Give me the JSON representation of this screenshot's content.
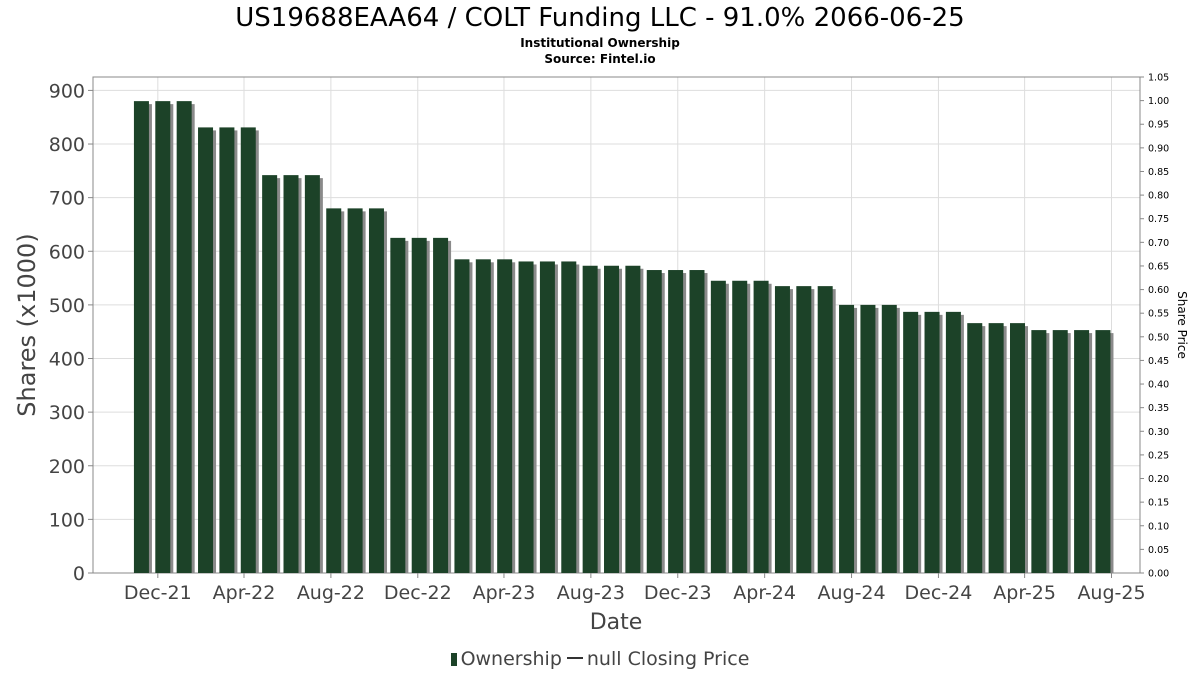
{
  "title": "US19688EAA64 / COLT Funding LLC - 91.0% 2066-06-25",
  "subtitle": "Institutional Ownership",
  "source": "Source: Fintel.io",
  "legend": {
    "ownership": "Ownership",
    "price": "null Closing Price"
  },
  "colors": {
    "bar": "#1c4228",
    "bar_shadow": "#8a8a8a",
    "grid": "#dddddd",
    "axis": "#888888"
  },
  "chart_data": {
    "type": "bar",
    "xlabel": "Date",
    "ylabel": "Shares (x1000)",
    "y2label": "Share Price",
    "ylim": [
      0,
      925
    ],
    "y2lim": [
      0,
      1.05
    ],
    "xlim": [
      "2021-09-01",
      "2025-09-10"
    ],
    "grid": true,
    "legend_position": "bottom",
    "yticks": [
      0,
      100,
      200,
      300,
      400,
      500,
      600,
      700,
      800,
      900
    ],
    "y2ticks": [
      "0.00",
      "0.05",
      "0.10",
      "0.15",
      "0.20",
      "0.25",
      "0.30",
      "0.35",
      "0.40",
      "0.45",
      "0.50",
      "0.55",
      "0.60",
      "0.65",
      "0.70",
      "0.75",
      "0.80",
      "0.85",
      "0.90",
      "0.95",
      "1.00",
      "1.05"
    ],
    "xticks": [
      {
        "label": "Dec-21",
        "date": "2021-12-01"
      },
      {
        "label": "Apr-22",
        "date": "2022-04-01"
      },
      {
        "label": "Aug-22",
        "date": "2022-08-01"
      },
      {
        "label": "Dec-22",
        "date": "2022-12-01"
      },
      {
        "label": "Apr-23",
        "date": "2023-04-01"
      },
      {
        "label": "Aug-23",
        "date": "2023-08-01"
      },
      {
        "label": "Dec-23",
        "date": "2023-12-01"
      },
      {
        "label": "Apr-24",
        "date": "2024-04-01"
      },
      {
        "label": "Aug-24",
        "date": "2024-08-01"
      },
      {
        "label": "Dec-24",
        "date": "2024-12-01"
      },
      {
        "label": "Apr-25",
        "date": "2025-04-01"
      },
      {
        "label": "Aug-25",
        "date": "2025-08-01"
      }
    ],
    "series": [
      {
        "name": "Ownership",
        "x": [
          "2021-11-08",
          "2021-12-08",
          "2022-01-07",
          "2022-02-06",
          "2022-03-08",
          "2022-04-07",
          "2022-05-07",
          "2022-06-06",
          "2022-07-06",
          "2022-08-05",
          "2022-09-04",
          "2022-10-04",
          "2022-11-03",
          "2022-12-03",
          "2023-01-02",
          "2023-02-01",
          "2023-03-03",
          "2023-04-02",
          "2023-05-02",
          "2023-06-01",
          "2023-07-01",
          "2023-07-31",
          "2023-08-30",
          "2023-09-29",
          "2023-10-29",
          "2023-11-28",
          "2023-12-28",
          "2024-01-27",
          "2024-02-26",
          "2024-03-27",
          "2024-04-26",
          "2024-05-26",
          "2024-06-25",
          "2024-07-25",
          "2024-08-24",
          "2024-09-23",
          "2024-10-23",
          "2024-11-22",
          "2024-12-22",
          "2025-01-21",
          "2025-02-20",
          "2025-03-22",
          "2025-04-21",
          "2025-05-21",
          "2025-06-20",
          "2025-07-20"
        ],
        "values": [
          880,
          880,
          880,
          831,
          831,
          831,
          742,
          742,
          742,
          680,
          680,
          680,
          625,
          625,
          625,
          585,
          585,
          585,
          581,
          581,
          581,
          573,
          573,
          573,
          565,
          565,
          565,
          545,
          545,
          545,
          535,
          535,
          535,
          500,
          500,
          500,
          487,
          487,
          487,
          466,
          466,
          466,
          453,
          453,
          453,
          453
        ]
      }
    ]
  }
}
